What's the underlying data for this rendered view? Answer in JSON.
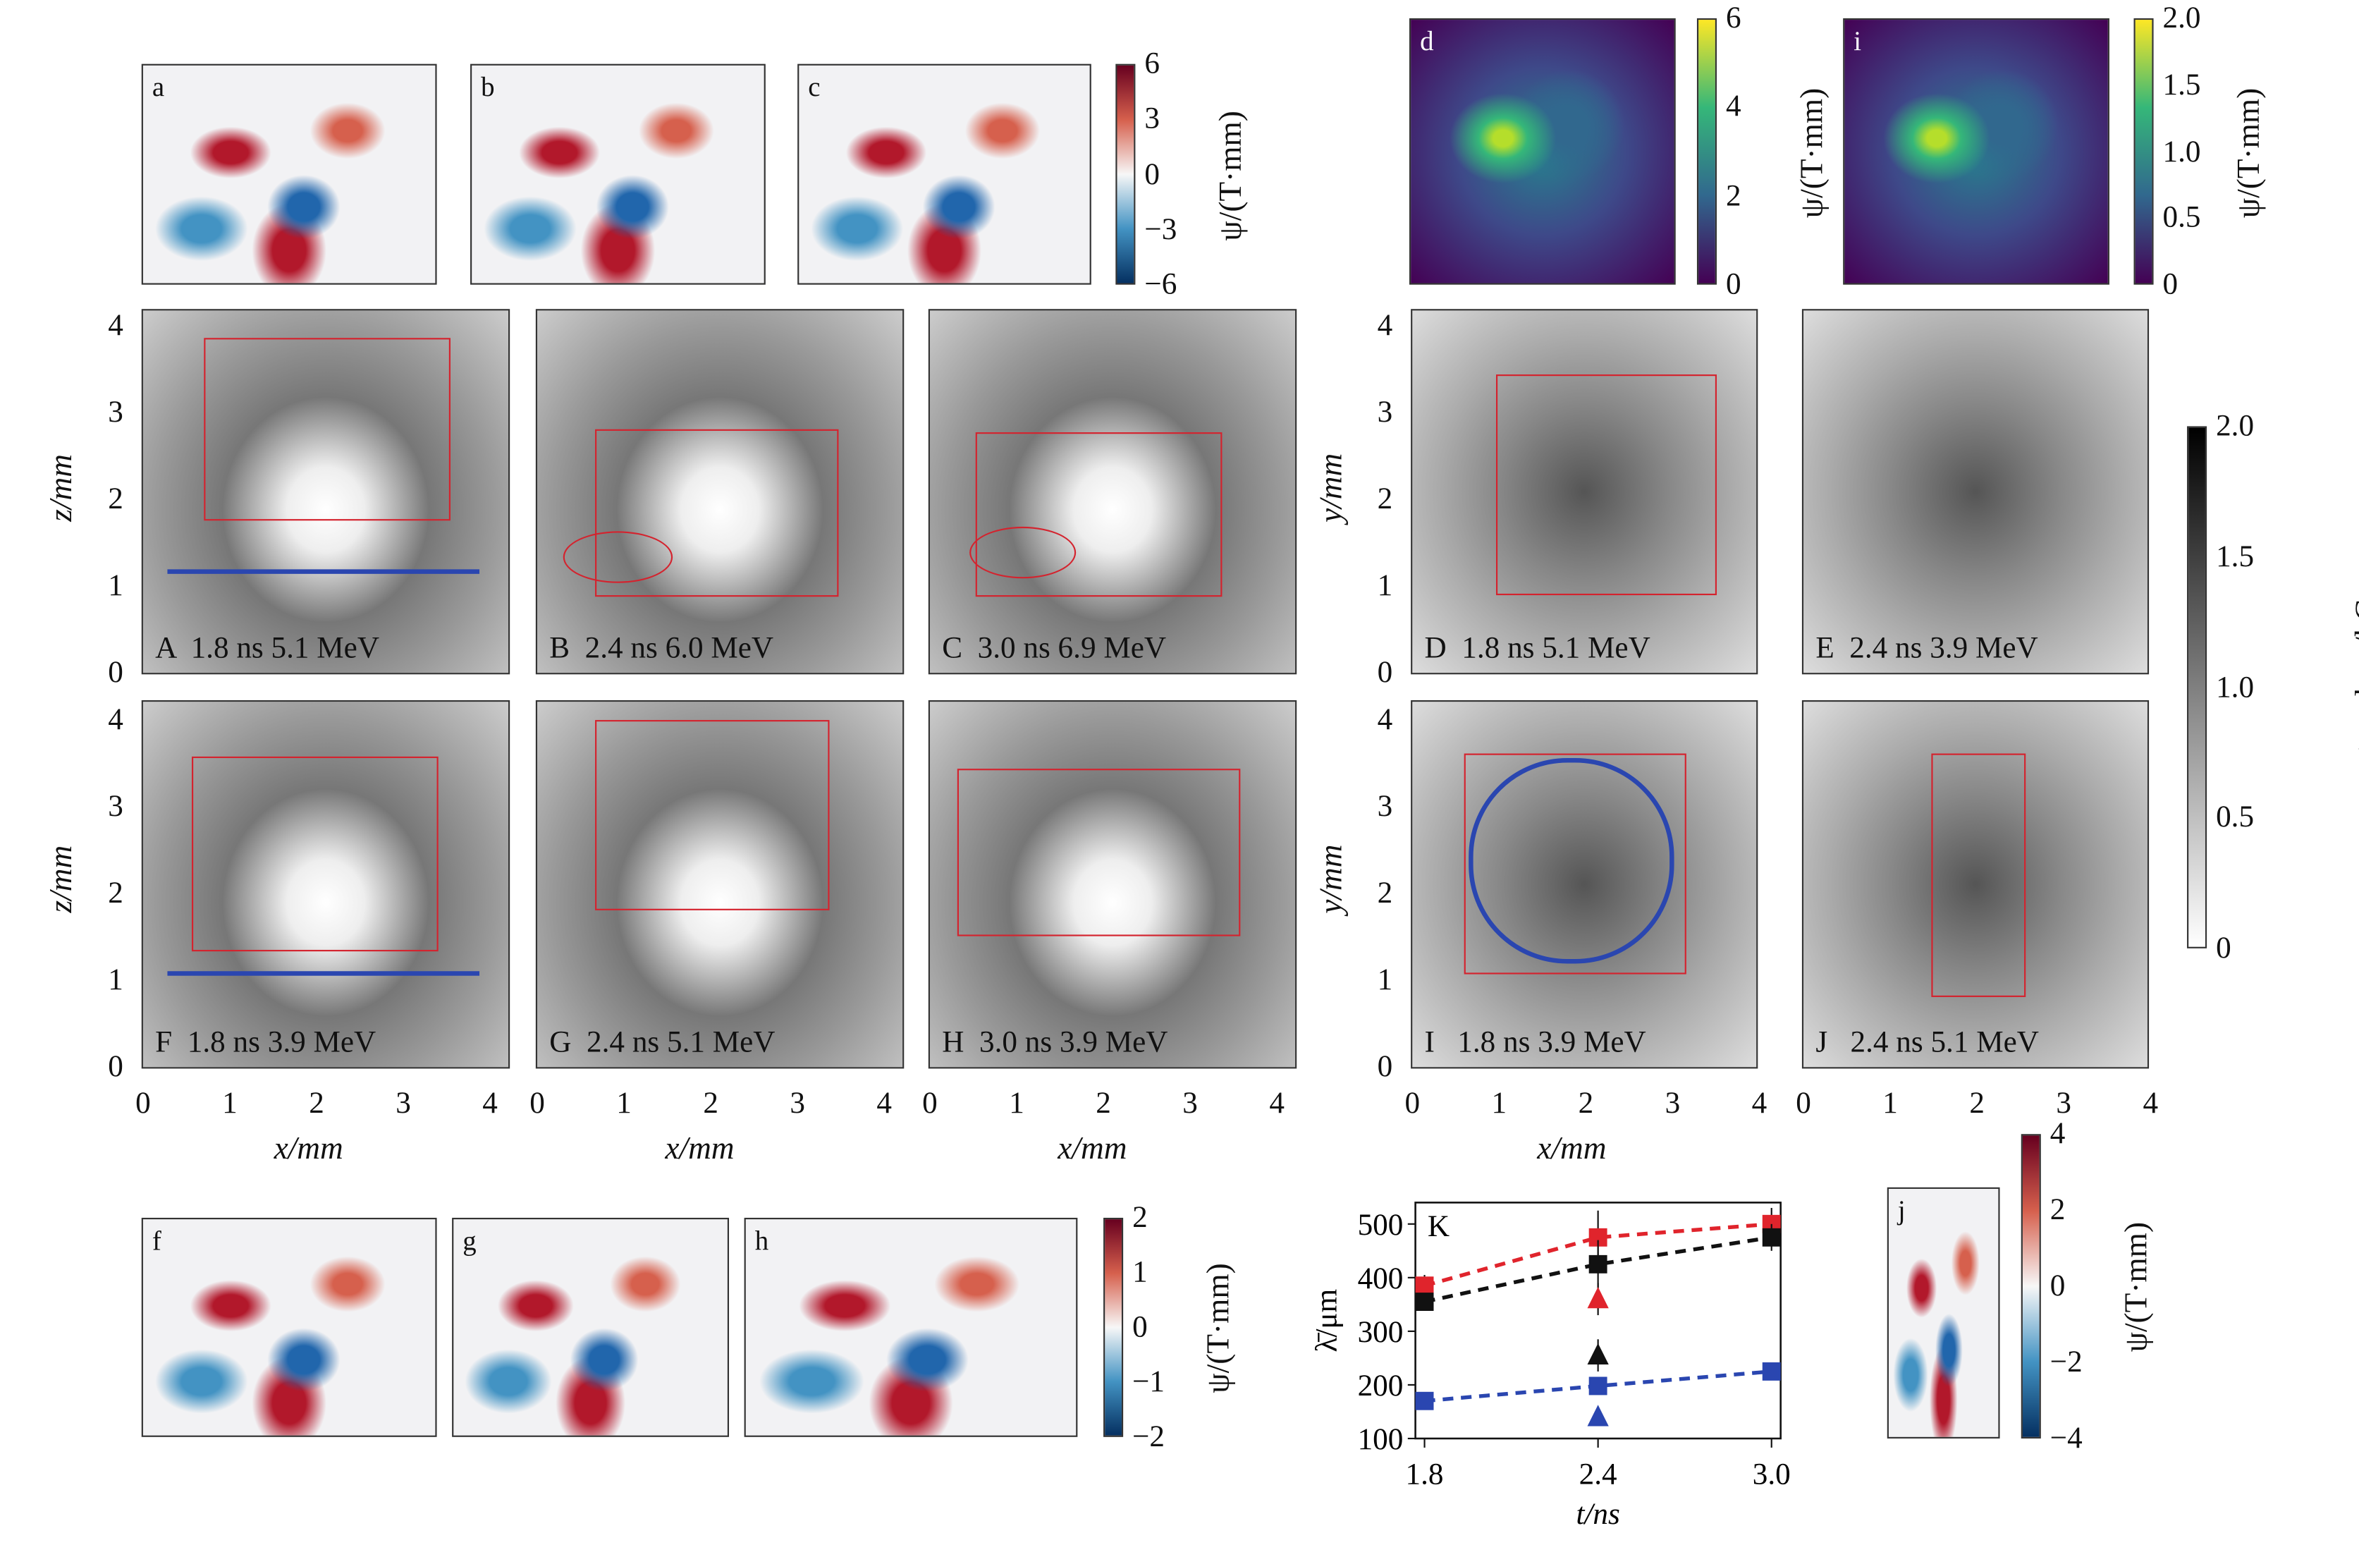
{
  "main_panels": [
    {
      "id": "A",
      "label": "A  1.8 ns 5.1 MeV"
    },
    {
      "id": "B",
      "label": "B  2.4 ns 6.0 MeV"
    },
    {
      "id": "C",
      "label": "C  3.0 ns 6.9 MeV"
    },
    {
      "id": "D",
      "label": "D  1.8 ns 5.1 MeV"
    },
    {
      "id": "E",
      "label": "E  2.4 ns 3.9 MeV"
    },
    {
      "id": "F",
      "label": "F  1.8 ns 3.9 MeV"
    },
    {
      "id": "G",
      "label": "G  2.4 ns 5.1 MeV"
    },
    {
      "id": "H",
      "label": "H  3.0 ns 3.9 MeV"
    },
    {
      "id": "I",
      "label": "I   1.8 ns 3.9 MeV"
    },
    {
      "id": "J",
      "label": "J   2.4 ns 5.1 MeV"
    }
  ],
  "insets": [
    "a",
    "b",
    "c",
    "d",
    "i",
    "f",
    "g",
    "h",
    "j"
  ],
  "axis_ticks": [
    "0",
    "1",
    "2",
    "3",
    "4"
  ],
  "axis_labels": {
    "z": "z/mm",
    "y": "y/mm",
    "x": "x/mm"
  },
  "colorbars": {
    "abc": {
      "ticks": [
        "6",
        "3",
        "0",
        "−3",
        "−6"
      ],
      "label": "ψ/(T·mm)"
    },
    "d": {
      "ticks": [
        "6",
        "4",
        "2",
        "0"
      ],
      "label": "ψ/(T·mm)"
    },
    "i": {
      "ticks": [
        "2.0",
        "1.5",
        "1.0",
        "0.5",
        "0"
      ],
      "label": "ψ/(T·mm)"
    },
    "dose": {
      "ticks": [
        "2.0",
        "1.5",
        "1.0",
        "0.5",
        "0"
      ],
      "label": "proton dose/kGy"
    },
    "fgh": {
      "ticks": [
        "2",
        "1",
        "0",
        "−1",
        "−2"
      ],
      "label": "ψ/(T·mm)"
    },
    "j": {
      "ticks": [
        "4",
        "2",
        "0",
        "−2",
        "−4"
      ],
      "label": "ψ/(T·mm)"
    }
  },
  "chart_data": {
    "type": "line",
    "title": "K",
    "xlabel": "t/ns",
    "ylabel": "λ̄/μm",
    "x": [
      1.8,
      2.4,
      3.0
    ],
    "x_ticks": [
      "1.8",
      "2.4",
      "3.0"
    ],
    "y_ticks": [
      "100",
      "200",
      "300",
      "400",
      "500"
    ],
    "ylim": [
      100,
      540
    ],
    "series": [
      {
        "name": "red squares",
        "color": "#e0242c",
        "marker": "square",
        "values": [
          385,
          475,
          500
        ],
        "errors": [
          20,
          50,
          30
        ]
      },
      {
        "name": "black squares",
        "color": "#111111",
        "marker": "square",
        "values": [
          355,
          425,
          475
        ],
        "errors": [
          10,
          45,
          25
        ]
      },
      {
        "name": "blue squares",
        "color": "#2a46b0",
        "marker": "square",
        "values": [
          170,
          198,
          225
        ],
        "errors": [
          0,
          0,
          0
        ]
      }
    ],
    "triangles": [
      {
        "color": "#e0242c",
        "x": 2.4,
        "value": 360,
        "error": 30
      },
      {
        "color": "#111111",
        "x": 2.4,
        "value": 255,
        "error": 30
      },
      {
        "color": "#2a46b0",
        "x": 2.4,
        "value": 140,
        "error": 0
      }
    ]
  }
}
